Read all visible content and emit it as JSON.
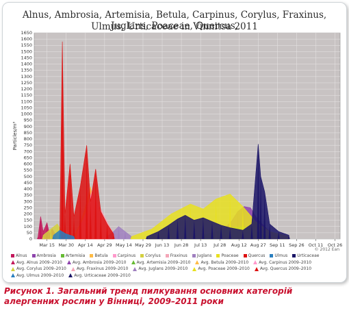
{
  "chart_data": {
    "type": "area",
    "title_line1": "Alnus, Ambrosia, Artemisia, Betula, Carpinus, Corylus, Fraxinus, Juglans, Poaceae, Quercus,",
    "title_line2": "Ulmus, Urticaceae in Vinnitsa 2011",
    "ylabel": "Particles/m³",
    "ylim": [
      0,
      1650
    ],
    "yticks": [
      0,
      50,
      100,
      150,
      200,
      250,
      300,
      350,
      400,
      450,
      500,
      550,
      600,
      650,
      700,
      750,
      800,
      850,
      900,
      950,
      1000,
      1050,
      1100,
      1150,
      1200,
      1250,
      1300,
      1350,
      1400,
      1450,
      1500,
      1550,
      1600,
      1650
    ],
    "xticks": [
      "Mar 15",
      "Mar 30",
      "Apr 14",
      "Apr 29",
      "May 14",
      "May 29",
      "Jun 13",
      "Jun 28",
      "Jul 13",
      "Jul 28",
      "Aug 12",
      "Aug 27",
      "Sep 11",
      "Sep 26",
      "Oct 11",
      "Oct 26"
    ],
    "x_start": "2011-03-05",
    "x_end": "2011-10-30",
    "grid": true,
    "background": "#c8c3c3",
    "copyright": "© 2012 Ean",
    "series": [
      {
        "name": "Alnus",
        "color": "#c2185b",
        "points": [
          [
            "2011-03-08",
            20
          ],
          [
            "2011-03-10",
            180
          ],
          [
            "2011-03-12",
            60
          ],
          [
            "2011-03-15",
            130
          ],
          [
            "2011-03-17",
            40
          ],
          [
            "2011-03-19",
            80
          ],
          [
            "2011-03-22",
            30
          ]
        ]
      },
      {
        "name": "Ambrosia",
        "color": "#8e44ad",
        "points": [
          [
            "2011-07-25",
            40
          ],
          [
            "2011-08-01",
            90
          ],
          [
            "2011-08-06",
            140
          ],
          [
            "2011-08-11",
            220
          ],
          [
            "2011-08-16",
            260
          ],
          [
            "2011-08-21",
            250
          ],
          [
            "2011-08-25",
            180
          ],
          [
            "2011-08-30",
            120
          ],
          [
            "2011-09-05",
            60
          ],
          [
            "2011-09-12",
            20
          ]
        ]
      },
      {
        "name": "Artemisia",
        "color": "#66bb33",
        "points": [
          [
            "2011-07-15",
            30
          ],
          [
            "2011-07-25",
            60
          ],
          [
            "2011-08-05",
            90
          ],
          [
            "2011-08-15",
            100
          ],
          [
            "2011-08-25",
            60
          ],
          [
            "2011-09-05",
            20
          ]
        ]
      },
      {
        "name": "Betula",
        "color": "#ffbb44",
        "points": [
          [
            "2011-04-06",
            40
          ],
          [
            "2011-04-10",
            120
          ],
          [
            "2011-04-14",
            260
          ],
          [
            "2011-04-18",
            420
          ],
          [
            "2011-04-20",
            310
          ],
          [
            "2011-04-23",
            180
          ],
          [
            "2011-04-26",
            90
          ],
          [
            "2011-04-30",
            30
          ]
        ]
      },
      {
        "name": "Carpinus",
        "color": "#ff99cc",
        "points": [
          [
            "2011-04-08",
            60
          ],
          [
            "2011-04-14",
            200
          ],
          [
            "2011-04-19",
            380
          ],
          [
            "2011-04-23",
            300
          ],
          [
            "2011-04-27",
            150
          ],
          [
            "2011-05-01",
            60
          ]
        ]
      },
      {
        "name": "Corylus",
        "color": "#d4d040",
        "points": [
          [
            "2011-03-12",
            30
          ],
          [
            "2011-03-18",
            80
          ],
          [
            "2011-03-23",
            120
          ],
          [
            "2011-03-27",
            60
          ],
          [
            "2011-04-02",
            20
          ]
        ]
      },
      {
        "name": "Fraxinus",
        "color": "#f4a6b8",
        "points": [
          [
            "2011-04-14",
            80
          ],
          [
            "2011-04-20",
            180
          ],
          [
            "2011-04-25",
            260
          ],
          [
            "2011-04-29",
            180
          ],
          [
            "2011-05-04",
            80
          ],
          [
            "2011-05-08",
            20
          ]
        ]
      },
      {
        "name": "Juglans",
        "color": "#a080c0",
        "points": [
          [
            "2011-05-01",
            20
          ],
          [
            "2011-05-06",
            60
          ],
          [
            "2011-05-10",
            100
          ],
          [
            "2011-05-15",
            60
          ],
          [
            "2011-05-20",
            20
          ]
        ]
      },
      {
        "name": "Poaceae",
        "color": "#e8e020",
        "points": [
          [
            "2011-05-20",
            20
          ],
          [
            "2011-06-05",
            80
          ],
          [
            "2011-06-20",
            200
          ],
          [
            "2011-07-05",
            280
          ],
          [
            "2011-07-15",
            240
          ],
          [
            "2011-07-25",
            320
          ],
          [
            "2011-08-05",
            360
          ],
          [
            "2011-08-15",
            260
          ],
          [
            "2011-08-25",
            140
          ],
          [
            "2011-09-05",
            60
          ],
          [
            "2011-09-20",
            20
          ]
        ]
      },
      {
        "name": "Quercus",
        "color": "#dd1111",
        "points": [
          [
            "2011-03-25",
            40
          ],
          [
            "2011-03-27",
            1580
          ],
          [
            "2011-03-29",
            200
          ],
          [
            "2011-04-02",
            600
          ],
          [
            "2011-04-05",
            180
          ],
          [
            "2011-04-10",
            420
          ],
          [
            "2011-04-15",
            750
          ],
          [
            "2011-04-18",
            300
          ],
          [
            "2011-04-22",
            560
          ],
          [
            "2011-04-26",
            220
          ],
          [
            "2011-05-01",
            120
          ],
          [
            "2011-05-06",
            40
          ]
        ]
      },
      {
        "name": "Ulmus",
        "color": "#2a7fbf",
        "points": [
          [
            "2011-03-20",
            30
          ],
          [
            "2011-03-25",
            70
          ],
          [
            "2011-03-30",
            40
          ],
          [
            "2011-04-05",
            20
          ]
        ]
      },
      {
        "name": "Urticaceae",
        "color": "#1a1466",
        "points": [
          [
            "2011-06-01",
            20
          ],
          [
            "2011-06-10",
            60
          ],
          [
            "2011-06-18",
            110
          ],
          [
            "2011-06-25",
            160
          ],
          [
            "2011-07-01",
            190
          ],
          [
            "2011-07-08",
            150
          ],
          [
            "2011-07-15",
            170
          ],
          [
            "2011-07-22",
            140
          ],
          [
            "2011-07-29",
            110
          ],
          [
            "2011-08-05",
            90
          ],
          [
            "2011-08-15",
            70
          ],
          [
            "2011-08-22",
            120
          ],
          [
            "2011-08-27",
            760
          ],
          [
            "2011-08-29",
            500
          ],
          [
            "2011-09-01",
            380
          ],
          [
            "2011-09-05",
            120
          ],
          [
            "2011-09-12",
            60
          ],
          [
            "2011-09-20",
            30
          ]
        ]
      },
      {
        "name": "Avg. Alnus 2009–2010",
        "color": "#c2185b",
        "avg": true
      },
      {
        "name": "Avg. Ambrosia 2009–2010",
        "color": "#8e44ad",
        "avg": true
      },
      {
        "name": "Avg. Artemisia 2009–2010",
        "color": "#66bb33",
        "avg": true
      },
      {
        "name": "Avg. Betula 2009–2010",
        "color": "#ffbb44",
        "avg": true
      },
      {
        "name": "Avg. Carpinus 2009–2010",
        "color": "#ff99cc",
        "avg": true
      },
      {
        "name": "Avg. Corylus 2009–2010",
        "color": "#d4d040",
        "avg": true
      },
      {
        "name": "Avg. Fraxinus 2009–2010",
        "color": "#f4a6b8",
        "avg": true
      },
      {
        "name": "Avg. Juglans 2009–2010",
        "color": "#a080c0",
        "avg": true
      },
      {
        "name": "Avg. Poaceae 2009–2010",
        "color": "#e8e020",
        "avg": true
      },
      {
        "name": "Avg. Quercus 2009–2010",
        "color": "#dd1111",
        "avg": true
      },
      {
        "name": "Avg. Ulmus 2009–2010",
        "color": "#2a7fbf",
        "avg": true
      },
      {
        "name": "Avg. Urticaceae 2009–2010",
        "color": "#1a1466",
        "avg": true
      }
    ]
  },
  "caption": "Рисунок 1. Загальний тренд пилкування основних категорій алергенних рослин у Вінниці, 2009–2011 роки"
}
